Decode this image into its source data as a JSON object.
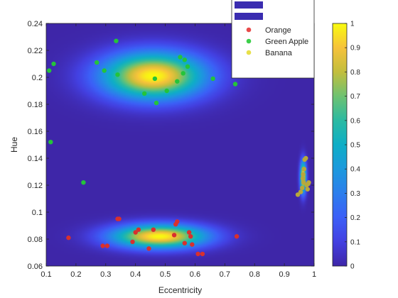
{
  "chart_data": {
    "type": "scatter",
    "xlabel": "Eccentricity",
    "ylabel": "Hue",
    "xlim": [
      0.1,
      1
    ],
    "ylim": [
      0.06,
      0.24
    ],
    "xticks": [
      "0.1",
      "0.2",
      "0.3",
      "0.4",
      "0.5",
      "0.6",
      "0.7",
      "0.8",
      "0.9",
      "1"
    ],
    "yticks": [
      "0.06",
      "0.08",
      "0.1",
      "0.12",
      "0.14",
      "0.16",
      "0.18",
      "0.2",
      "0.22",
      "0.24"
    ],
    "background_color": "#3e26a8",
    "heatmap": {
      "description_colormap": "parula",
      "peaks": [
        {
          "cx": 0.46,
          "cy": 0.201,
          "sx": 0.12,
          "sy": 0.012,
          "amp": 1.0
        },
        {
          "cx": 0.48,
          "cy": 0.082,
          "sx": 0.11,
          "sy": 0.006,
          "amp": 1.0
        },
        {
          "cx": 0.963,
          "cy": 0.126,
          "sx": 0.007,
          "sy": 0.008,
          "amp": 1.0
        }
      ]
    },
    "colorbar": {
      "range": [
        0,
        1
      ],
      "ticks": [
        "0",
        "0.1",
        "0.2",
        "0.3",
        "0.4",
        "0.5",
        "0.6",
        "0.7",
        "0.8",
        "0.9",
        "1"
      ]
    },
    "legend": {
      "placement": "top-right",
      "patch_color": "#3a2cb0",
      "entries": [
        {
          "label": "Orange",
          "color": "#e84a4a"
        },
        {
          "label": "Green Apple",
          "color": "#3ccf4a"
        },
        {
          "label": "Banana",
          "color": "#e8e04a"
        }
      ]
    },
    "series": [
      {
        "name": "Orange",
        "color": "#d8302e",
        "points": [
          [
            0.175,
            0.081
          ],
          [
            0.29,
            0.075
          ],
          [
            0.305,
            0.075
          ],
          [
            0.34,
            0.095
          ],
          [
            0.345,
            0.095
          ],
          [
            0.39,
            0.078
          ],
          [
            0.4,
            0.085
          ],
          [
            0.41,
            0.087
          ],
          [
            0.445,
            0.073
          ],
          [
            0.46,
            0.087
          ],
          [
            0.53,
            0.083
          ],
          [
            0.535,
            0.091
          ],
          [
            0.54,
            0.093
          ],
          [
            0.565,
            0.077
          ],
          [
            0.58,
            0.085
          ],
          [
            0.585,
            0.082
          ],
          [
            0.59,
            0.076
          ],
          [
            0.61,
            0.069
          ],
          [
            0.625,
            0.069
          ],
          [
            0.74,
            0.082
          ]
        ]
      },
      {
        "name": "Green Apple",
        "color": "#24c43a",
        "points": [
          [
            0.11,
            0.205
          ],
          [
            0.115,
            0.152
          ],
          [
            0.125,
            0.21
          ],
          [
            0.225,
            0.122
          ],
          [
            0.27,
            0.211
          ],
          [
            0.295,
            0.205
          ],
          [
            0.335,
            0.227
          ],
          [
            0.34,
            0.202
          ],
          [
            0.43,
            0.188
          ],
          [
            0.465,
            0.199
          ],
          [
            0.47,
            0.181
          ],
          [
            0.505,
            0.19
          ],
          [
            0.54,
            0.197
          ],
          [
            0.55,
            0.215
          ],
          [
            0.56,
            0.203
          ],
          [
            0.565,
            0.213
          ],
          [
            0.575,
            0.208
          ],
          [
            0.66,
            0.199
          ],
          [
            0.735,
            0.195
          ],
          [
            0.735,
            0.205
          ]
        ]
      },
      {
        "name": "Banana",
        "color": "#b8a83a",
        "points": [
          [
            0.945,
            0.113
          ],
          [
            0.955,
            0.115
          ],
          [
            0.96,
            0.118
          ],
          [
            0.962,
            0.125
          ],
          [
            0.963,
            0.128
          ],
          [
            0.965,
            0.122
          ],
          [
            0.966,
            0.132
          ],
          [
            0.968,
            0.139
          ],
          [
            0.972,
            0.14
          ],
          [
            0.975,
            0.12
          ],
          [
            0.978,
            0.117
          ],
          [
            0.98,
            0.121
          ],
          [
            0.982,
            0.122
          ]
        ]
      }
    ]
  }
}
